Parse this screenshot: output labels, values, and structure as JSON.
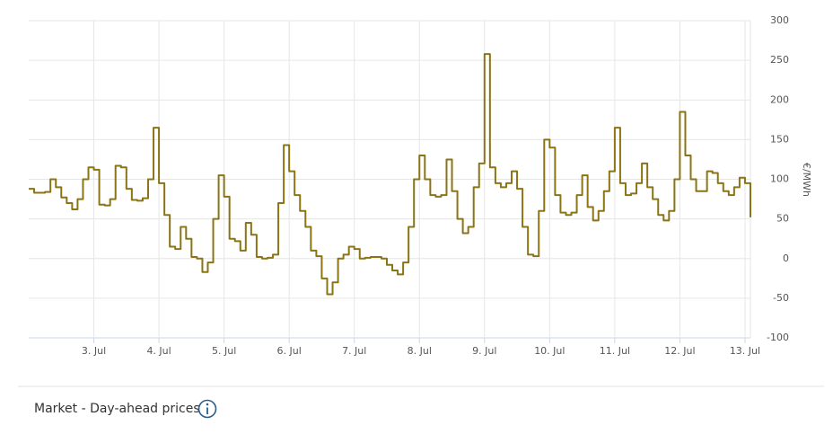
{
  "chart_data": {
    "type": "step-line",
    "y_axis_label": "€/MWh",
    "x": [
      0,
      2,
      4,
      6,
      8,
      10,
      12,
      14,
      16,
      18,
      20,
      22,
      24,
      26,
      28,
      30,
      32,
      34,
      36,
      38,
      40,
      42,
      44,
      46,
      48,
      50,
      52,
      54,
      56,
      58,
      60,
      62,
      64,
      66,
      68,
      70,
      72,
      74,
      76,
      78,
      80,
      82,
      84,
      86,
      88,
      90,
      92,
      94,
      96,
      98,
      100,
      102,
      104,
      106,
      108,
      110,
      112,
      114,
      116,
      118,
      120,
      122,
      124,
      126,
      128,
      130,
      132,
      134,
      136,
      138,
      140,
      142,
      144,
      146,
      148,
      150,
      152,
      154,
      156,
      158,
      160,
      162,
      164,
      166,
      168,
      170,
      172,
      174,
      176,
      178,
      180,
      182,
      184,
      186,
      188,
      190,
      192,
      194,
      196,
      198,
      200,
      202,
      204,
      206,
      208,
      210,
      212,
      214,
      216,
      218,
      220,
      222,
      224,
      226,
      228,
      230,
      232,
      234,
      236,
      238,
      240,
      242,
      244,
      246,
      248,
      250,
      252,
      254,
      256,
      258,
      260,
      262,
      264,
      266
    ],
    "series": [
      {
        "color": "#8b7415",
        "values": [
          88,
          83,
          83,
          84,
          100,
          90,
          77,
          70,
          62,
          75,
          100,
          115,
          112,
          68,
          67,
          75,
          117,
          115,
          88,
          74,
          73,
          76,
          100,
          165,
          95,
          55,
          15,
          12,
          40,
          25,
          2,
          0,
          -17,
          -5,
          50,
          105,
          78,
          25,
          22,
          10,
          45,
          30,
          2,
          0,
          1,
          5,
          70,
          143,
          110,
          80,
          60,
          40,
          10,
          3,
          -25,
          -45,
          -30,
          0,
          5,
          15,
          12,
          0,
          1,
          2,
          2,
          0,
          -8,
          -15,
          -20,
          -5,
          40,
          100,
          130,
          100,
          80,
          78,
          80,
          125,
          85,
          50,
          32,
          40,
          90,
          120,
          258,
          115,
          95,
          90,
          95,
          110,
          88,
          40,
          5,
          3,
          60,
          150,
          140,
          80,
          58,
          55,
          58,
          80,
          105,
          65,
          48,
          60,
          85,
          110,
          165,
          95,
          80,
          82,
          95,
          120,
          90,
          75,
          55,
          48,
          60,
          100,
          185,
          130,
          100,
          85,
          85,
          110,
          108,
          95,
          85,
          80,
          90,
          102,
          95,
          52
        ]
      }
    ],
    "xlim": [
      0,
      266
    ],
    "xticks": [
      {
        "value": 24,
        "label": "3. Jul"
      },
      {
        "value": 48,
        "label": "4. Jul"
      },
      {
        "value": 72,
        "label": "5. Jul"
      },
      {
        "value": 96,
        "label": "6. Jul"
      },
      {
        "value": 120,
        "label": "7. Jul"
      },
      {
        "value": 144,
        "label": "8. Jul"
      },
      {
        "value": 168,
        "label": "9. Jul"
      },
      {
        "value": 192,
        "label": "10. Jul"
      },
      {
        "value": 216,
        "label": "11. Jul"
      },
      {
        "value": 240,
        "label": "12. Jul"
      },
      {
        "value": 264,
        "label": "13. Jul"
      }
    ],
    "ylim": [
      -100,
      300
    ],
    "yticks": [
      -100,
      -50,
      0,
      50,
      100,
      150,
      200,
      250,
      300
    ],
    "grid": true
  },
  "footer": {
    "label": "Market - Day-ahead prices"
  }
}
